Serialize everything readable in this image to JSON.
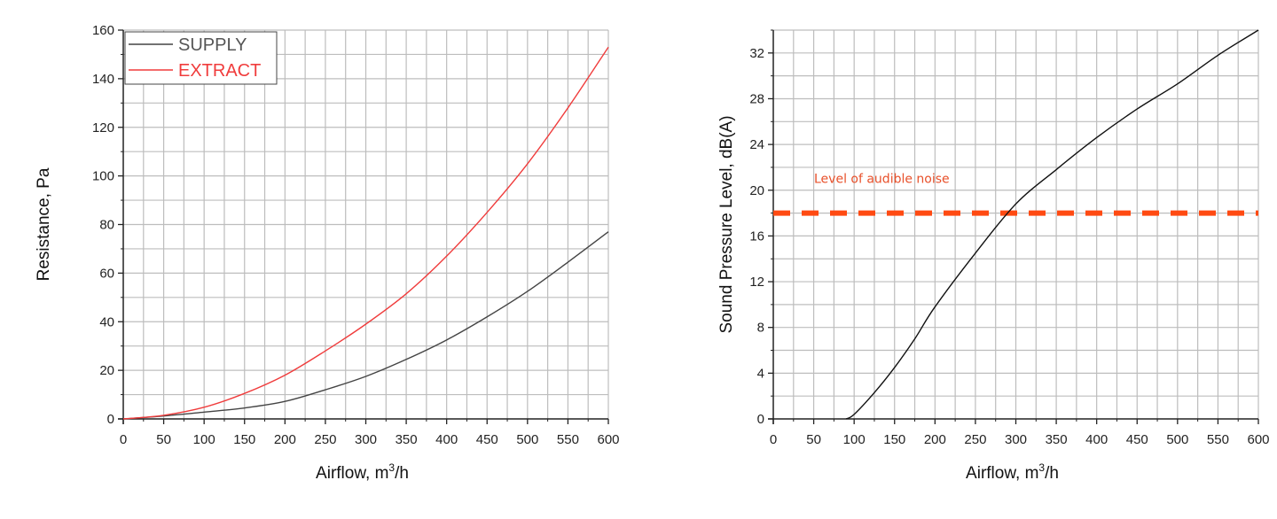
{
  "chart_data": [
    {
      "type": "line",
      "xlabel": "Airflow, m",
      "xlabel_sup": "3",
      "xlabel_suffix": "/h",
      "ylabel": "Resistance, Pa",
      "xlim": [
        0,
        600
      ],
      "ylim": [
        0,
        160
      ],
      "xticks": [
        0,
        50,
        100,
        150,
        200,
        250,
        300,
        350,
        400,
        450,
        500,
        550,
        600
      ],
      "yticks": [
        0,
        20,
        40,
        60,
        80,
        100,
        120,
        140,
        160
      ],
      "grid": true,
      "legend": "top-left",
      "series": [
        {
          "name": "SUPPLY",
          "color": "#444444",
          "x": [
            0,
            50,
            100,
            150,
            200,
            250,
            300,
            350,
            400,
            450,
            500,
            550,
            600
          ],
          "y": [
            0,
            1.2,
            2.8,
            4.5,
            7.2,
            12,
            17.5,
            24.5,
            32.5,
            42,
            52.5,
            64.5,
            77
          ]
        },
        {
          "name": "EXTRACT",
          "color": "#f03c3c",
          "x": [
            0,
            50,
            100,
            150,
            200,
            250,
            300,
            350,
            400,
            450,
            500,
            550,
            600
          ],
          "y": [
            0,
            1.5,
            4.8,
            10.5,
            18,
            28,
            39,
            51.5,
            67,
            85,
            105,
            128,
            153
          ]
        }
      ]
    },
    {
      "type": "line",
      "xlabel": "Airflow, m",
      "xlabel_sup": "3",
      "xlabel_suffix": "/h",
      "ylabel": "Sound Pressure Level, dB(A)",
      "xlim": [
        0,
        600
      ],
      "ylim": [
        0,
        34
      ],
      "xticks": [
        0,
        50,
        100,
        150,
        200,
        250,
        300,
        350,
        400,
        450,
        500,
        550,
        600
      ],
      "yticks": [
        0,
        4,
        8,
        12,
        16,
        20,
        24,
        28,
        32
      ],
      "grid": true,
      "series": [
        {
          "color": "#111111",
          "x": [
            90,
            100,
            125,
            150,
            175,
            200,
            250,
            300,
            350,
            400,
            450,
            500,
            550,
            600
          ],
          "y": [
            0,
            0.4,
            2.3,
            4.5,
            7,
            9.8,
            14.5,
            18.8,
            21.8,
            24.6,
            27.1,
            29.3,
            31.8,
            34
          ]
        }
      ],
      "annotations": [
        {
          "type": "hline",
          "y": 18,
          "color": "#ff4a12",
          "style": "dashed",
          "label": "Level of audible noise",
          "label_color": "#e8502a"
        }
      ]
    }
  ]
}
